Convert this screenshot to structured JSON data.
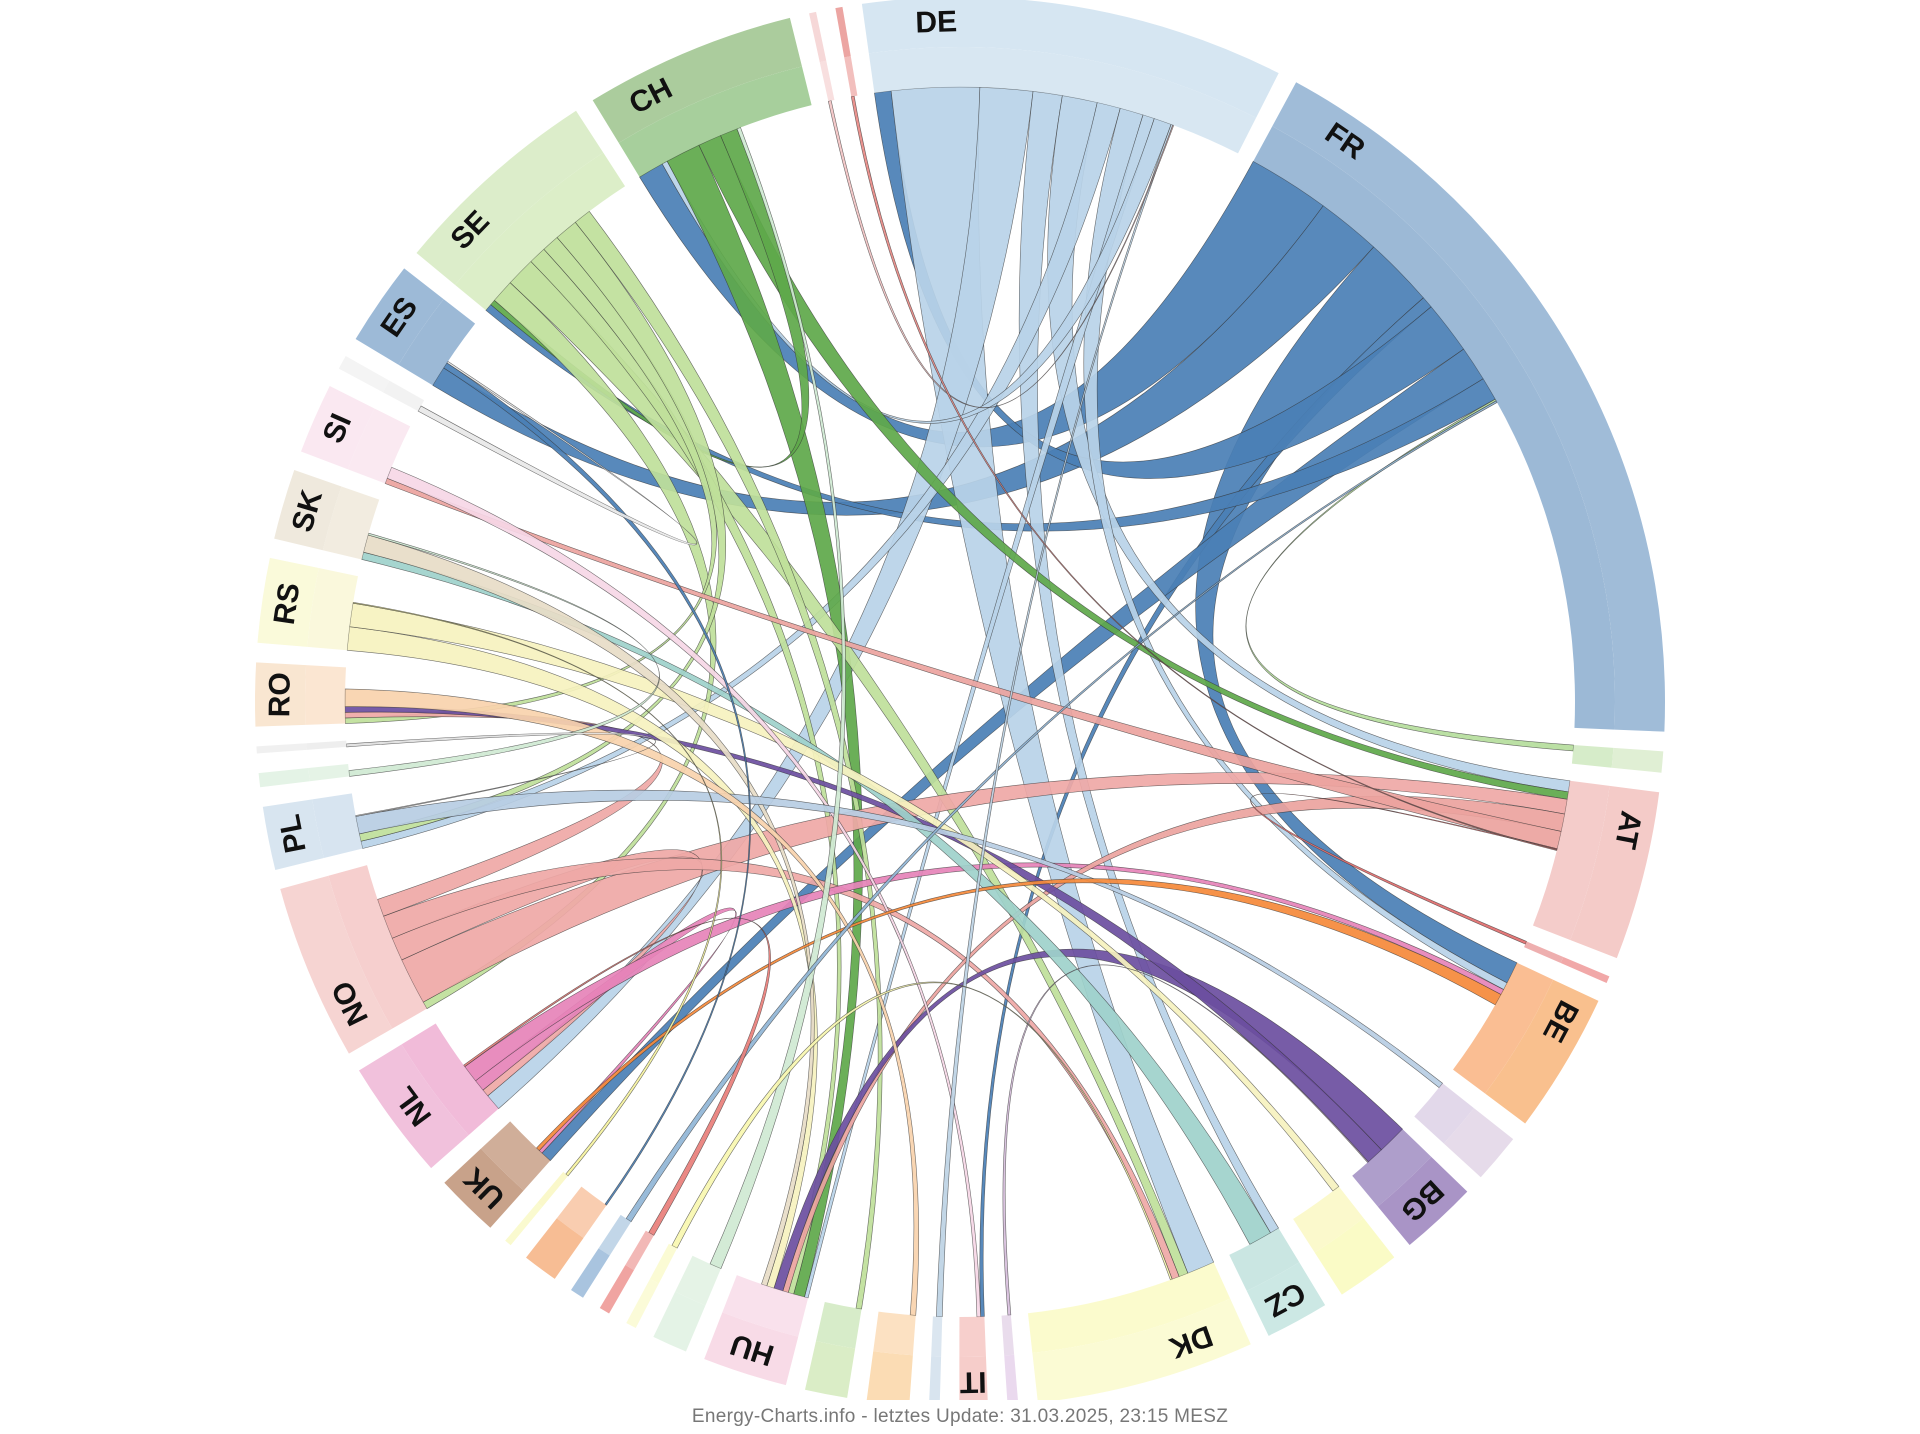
{
  "footer": {
    "credit": "Energy-Charts.info - letztes Update: 31.03.2025, 23:15 MESZ"
  },
  "chart_data": {
    "type": "chord",
    "title": "",
    "groups": [
      {
        "id": "DE",
        "label": "DE",
        "value": 60,
        "color": "#b8d3e8",
        "band": "#d6e6f2"
      },
      {
        "id": "FR",
        "label": "FR",
        "value": 110,
        "color": "#4a7fb5",
        "band": "#a0bcd8"
      },
      {
        "id": "g_lgreen_small",
        "label": "",
        "value": 3,
        "color": "#b5dd9c",
        "band": "#e0efd4"
      },
      {
        "id": "AT",
        "label": "AT",
        "value": 24,
        "color": "#eba39e",
        "band": "#f4cbc8"
      },
      {
        "id": "g_red_small",
        "label": "",
        "value": 1,
        "color": "#e06d6d",
        "band": "#f1a8a8"
      },
      {
        "id": "BE",
        "label": "BE",
        "value": 20,
        "color": "#f5893a",
        "band": "#f9c08e"
      },
      {
        "id": "g_lilac",
        "label": "",
        "value": 7,
        "color": "#cbb8d9",
        "band": "#e6dbea"
      },
      {
        "id": "BG",
        "label": "BG",
        "value": 11,
        "color": "#6b4ea0",
        "band": "#a994c6"
      },
      {
        "id": "g_yellow",
        "label": "",
        "value": 9,
        "color": "#f7f4a2",
        "band": "#fafbc6"
      },
      {
        "id": "CZ",
        "label": "CZ",
        "value": 9,
        "color": "#9ed1cb",
        "band": "#cce8e4"
      },
      {
        "id": "DK",
        "label": "DK",
        "value": 31,
        "color": "#f8f7a4",
        "band": "#fbfbd4"
      },
      {
        "id": "g_lilac_small",
        "label": "",
        "value": 1.5,
        "color": "#d7bfdc",
        "band": "#ead9ee"
      },
      {
        "id": "IT",
        "label": "IT",
        "value": 4,
        "color": "#f1a8a2",
        "band": "#f6cdca"
      },
      {
        "id": "g_lightblue_small",
        "label": "",
        "value": 1.5,
        "color": "#bdd2e4",
        "band": "#d8e4ef"
      },
      {
        "id": "g_peach",
        "label": "",
        "value": 6,
        "color": "#f9c890",
        "band": "#fbdcb4"
      },
      {
        "id": "g_green_small",
        "label": "",
        "value": 6,
        "color": "#b7dd9d",
        "band": "#daedc6"
      },
      {
        "id": "HU",
        "label": "HU",
        "value": 12,
        "color": "#f4c8dc",
        "band": "#f8dbe7"
      },
      {
        "id": "g_mint",
        "label": "",
        "value": 5,
        "color": "#cfe9d2",
        "band": "#e4f3e6"
      },
      {
        "id": "g_yellow_small",
        "label": "",
        "value": 1.5,
        "color": "#f8f7b0",
        "band": "#fbfbd8"
      },
      {
        "id": "g_red_small2",
        "label": "",
        "value": 1.5,
        "color": "#e87e7a",
        "band": "#f0a4a1"
      },
      {
        "id": "g_blue_small",
        "label": "",
        "value": 2,
        "color": "#90b5d6",
        "band": "#a9c4df"
      },
      {
        "id": "g_orange",
        "label": "",
        "value": 5,
        "color": "#f4a470",
        "band": "#f7bd94"
      },
      {
        "id": "g_yellow_small2",
        "label": "",
        "value": 1,
        "color": "#f6f39f",
        "band": "#fafacf"
      },
      {
        "id": "UK",
        "label": "UK",
        "value": 9,
        "color": "#a96b45",
        "band": "#c8a28a"
      },
      {
        "id": "NL",
        "label": "NL",
        "value": 17,
        "color": "#e683b9",
        "band": "#f1c1dc"
      },
      {
        "id": "NO",
        "label": "NO",
        "value": 25,
        "color": "#efa8a6",
        "band": "#f6d4d2"
      },
      {
        "id": "PL",
        "label": "PL",
        "value": 9,
        "color": "#b7cde3",
        "band": "#d8e5f0"
      },
      {
        "id": "g_mint2",
        "label": "",
        "value": 2,
        "color": "#cfe9d2",
        "band": "#e4f3e6"
      },
      {
        "id": "g_blank",
        "label": "",
        "value": 1,
        "color": "#e0e0e0",
        "band": "#f0f0f0"
      },
      {
        "id": "RO",
        "label": "RO",
        "value": 9,
        "color": "#f8d2ad",
        "band": "#f9e6d1"
      },
      {
        "id": "RS",
        "label": "RS",
        "value": 12,
        "color": "#f6f2bf",
        "band": "#fafada"
      },
      {
        "id": "SK",
        "label": "SK",
        "value": 10,
        "color": "#e7dcc7",
        "band": "#efe9dd"
      },
      {
        "id": "SI",
        "label": "SI",
        "value": 10,
        "color": "#f6d7e6",
        "band": "#fae8f1"
      },
      {
        "id": "g_lightgray",
        "label": "",
        "value": 2,
        "color": "#e8e8e8",
        "band": "#f4f4f4"
      },
      {
        "id": "ES",
        "label": "ES",
        "value": 12,
        "color": "#4a7fb5",
        "band": "#9dbad7"
      },
      {
        "id": "SE",
        "label": "SE",
        "value": 30,
        "color": "#bfe09a",
        "band": "#dcedca"
      },
      {
        "id": "CH",
        "label": "CH",
        "value": 30,
        "color": "#5ea84a",
        "band": "#abcc9d"
      },
      {
        "id": "g_pink_small",
        "label": "",
        "value": 1,
        "color": "#f2c4c4",
        "band": "#f6d8d8"
      },
      {
        "id": "g_red_small3",
        "label": "",
        "value": 1,
        "color": "#e88a86",
        "band": "#eca5a2"
      }
    ],
    "flows": [
      {
        "from": "FR",
        "to": "CH",
        "value": 14
      },
      {
        "from": "FR",
        "to": "ES",
        "value": 11
      },
      {
        "from": "FR",
        "to": "BE",
        "value": 12
      },
      {
        "from": "FR",
        "to": "IT",
        "value": 2
      },
      {
        "from": "FR",
        "to": "DE",
        "value": 9
      },
      {
        "from": "FR",
        "to": "UK",
        "value": 6
      },
      {
        "from": "FR",
        "to": "SE",
        "value": 4
      },
      {
        "from": "DE",
        "to": "DK",
        "value": 15
      },
      {
        "from": "DE",
        "to": "NL",
        "value": 9
      },
      {
        "from": "DE",
        "to": "CZ",
        "value": 5
      },
      {
        "from": "DE",
        "to": "AT",
        "value": 6
      },
      {
        "from": "DE",
        "to": "PL",
        "value": 4
      },
      {
        "from": "DE",
        "to": "BE",
        "value": 4
      },
      {
        "from": "DE",
        "to": "HU",
        "value": 2
      },
      {
        "from": "DE",
        "to": "CH",
        "value": 3
      },
      {
        "from": "CH",
        "to": "HU",
        "value": 6
      },
      {
        "from": "CH",
        "to": "AT",
        "value": 4
      },
      {
        "from": "CH",
        "to": "SE",
        "value": 3
      },
      {
        "from": "SE",
        "to": "NO",
        "value": 4
      },
      {
        "from": "SE",
        "to": "DK",
        "value": 5
      },
      {
        "from": "SE",
        "to": "HU",
        "value": 3
      },
      {
        "from": "SE",
        "to": "RO",
        "value": 3
      },
      {
        "from": "SE",
        "to": "PL",
        "value": 4
      },
      {
        "from": "SE",
        "to": "g_green_small",
        "value": 3
      },
      {
        "from": "NO",
        "to": "AT",
        "value": 8
      },
      {
        "from": "NO",
        "to": "NL",
        "value": 4
      },
      {
        "from": "NO",
        "to": "DK",
        "value": 4
      },
      {
        "from": "NO",
        "to": "RO",
        "value": 3
      },
      {
        "from": "NL",
        "to": "UK",
        "value": 2
      },
      {
        "from": "NL",
        "to": "BE",
        "value": 3
      },
      {
        "from": "AT",
        "to": "HU",
        "value": 3
      },
      {
        "from": "AT",
        "to": "SI",
        "value": 3
      },
      {
        "from": "BG",
        "to": "HU",
        "value": 5
      },
      {
        "from": "BG",
        "to": "RO",
        "value": 3
      },
      {
        "from": "CZ",
        "to": "SK",
        "value": 4
      },
      {
        "from": "RS",
        "to": "HU",
        "value": 4
      },
      {
        "from": "RS",
        "to": "g_yellow",
        "value": 4
      },
      {
        "from": "SK",
        "to": "HU",
        "value": 3
      },
      {
        "from": "SI",
        "to": "IT",
        "value": 2
      },
      {
        "from": "PL",
        "to": "g_lilac",
        "value": 3
      },
      {
        "from": "RO",
        "to": "g_peach",
        "value": 3
      },
      {
        "from": "BE",
        "to": "UK",
        "value": 2
      },
      {
        "from": "ES",
        "to": "g_orange",
        "value": 1
      },
      {
        "from": "g_mint",
        "to": "CH",
        "value": 2
      },
      {
        "from": "g_lgreen_small",
        "to": "FR",
        "value": 1
      },
      {
        "from": "g_blue_small",
        "to": "FR",
        "value": 1
      },
      {
        "from": "g_red_small",
        "to": "AT",
        "value": 0.5
      },
      {
        "from": "g_red_small2",
        "to": "NL",
        "value": 1
      },
      {
        "from": "g_lilac_small",
        "to": "BG",
        "value": 0.5
      },
      {
        "from": "g_lightblue_small",
        "to": "DE",
        "value": 1
      },
      {
        "from": "g_pink_small",
        "to": "DE",
        "value": 0.5
      },
      {
        "from": "g_red_small3",
        "to": "AT",
        "value": 0.5
      },
      {
        "from": "g_yellow_small",
        "to": "DK",
        "value": 1
      },
      {
        "from": "g_yellow_small2",
        "to": "RS",
        "value": 0.5
      },
      {
        "from": "g_mint2",
        "to": "SK",
        "value": 1
      },
      {
        "from": "g_lightgray",
        "to": "ES",
        "value": 1
      },
      {
        "from": "g_blank",
        "to": "PL",
        "value": 0.5
      }
    ]
  }
}
